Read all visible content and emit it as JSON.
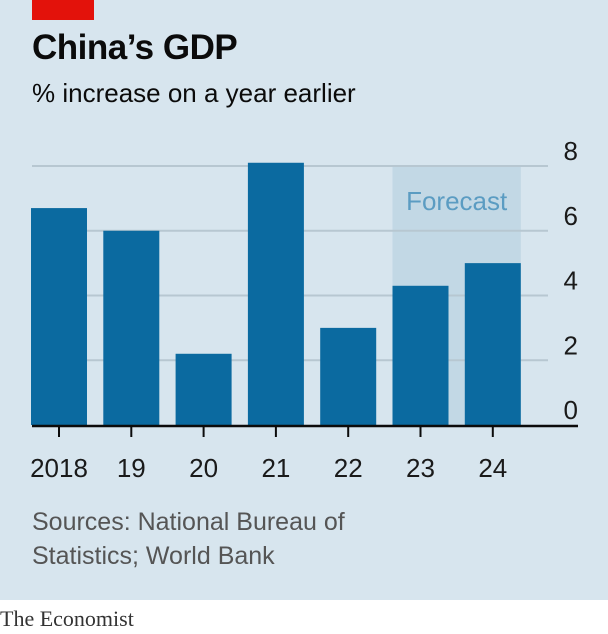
{
  "header": {
    "title": "China’s GDP",
    "subtitle": "% increase on a year earlier"
  },
  "footer": {
    "source": "Sources: National Bureau of Statistics; World Bank",
    "brand": "The Economist"
  },
  "colors": {
    "bar": "#0b6aa0",
    "panel": "#d7e5ee",
    "forecast_band": "#c2d8e5",
    "forecast_text": "#5b9cc2",
    "accent": "#e3120b"
  },
  "chart_data": {
    "type": "bar",
    "categories": [
      "2018",
      "19",
      "20",
      "21",
      "22",
      "23",
      "24"
    ],
    "values": [
      6.7,
      6.0,
      2.2,
      8.1,
      3.0,
      4.3,
      5.0
    ],
    "ylim": [
      0,
      8
    ],
    "yticks": [
      0,
      2,
      4,
      6,
      8
    ],
    "title": "China’s GDP",
    "subtitle": "% increase on a year earlier",
    "xlabel": "",
    "ylabel": "",
    "grid": true,
    "forecast": {
      "label": "Forecast",
      "categories": [
        "23",
        "24"
      ]
    }
  }
}
